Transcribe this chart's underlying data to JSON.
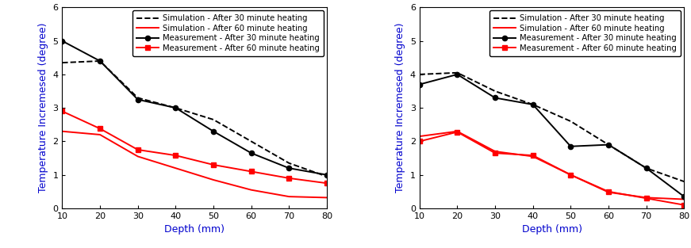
{
  "depth": [
    10,
    20,
    30,
    40,
    50,
    60,
    70,
    80
  ],
  "left": {
    "sim_30": [
      4.35,
      4.4,
      3.3,
      3.0,
      2.65,
      2.0,
      1.35,
      0.95
    ],
    "sim_60": [
      2.3,
      2.2,
      1.55,
      1.2,
      0.85,
      0.55,
      0.35,
      0.32
    ],
    "meas_30": [
      5.0,
      4.4,
      3.25,
      3.0,
      2.3,
      1.65,
      1.2,
      1.0
    ],
    "meas_60": [
      2.9,
      2.38,
      1.75,
      1.58,
      1.3,
      1.1,
      0.9,
      0.75
    ]
  },
  "right": {
    "sim_30": [
      4.0,
      4.05,
      3.5,
      3.1,
      2.6,
      1.9,
      1.2,
      0.8
    ],
    "sim_60": [
      2.15,
      2.3,
      1.7,
      1.55,
      1.0,
      0.48,
      0.32,
      0.27
    ],
    "meas_30": [
      3.7,
      4.0,
      3.3,
      3.1,
      1.85,
      1.9,
      1.2,
      0.35
    ],
    "meas_60": [
      2.0,
      2.28,
      1.65,
      1.58,
      1.0,
      0.5,
      0.3,
      0.1
    ]
  },
  "xlabel": "Depth (mm)",
  "ylabel": "Temperature Incremesed (degree)",
  "ylim": [
    0,
    6
  ],
  "xlim": [
    10,
    80
  ],
  "yticks": [
    0,
    1,
    2,
    3,
    4,
    5,
    6
  ],
  "xticks": [
    10,
    20,
    30,
    40,
    50,
    60,
    70,
    80
  ],
  "legend_labels": [
    "Simulation - After 30 minute heating",
    "Simulation - After 60 minute heating",
    "Measurement - After 30 minute heating",
    "Measurement - After 60 minute heating"
  ],
  "color_black": "#000000",
  "color_red": "#ff0000",
  "label_color": "#0000cd",
  "fontsize_label": 9,
  "fontsize_tick": 8,
  "fontsize_legend": 7.2
}
